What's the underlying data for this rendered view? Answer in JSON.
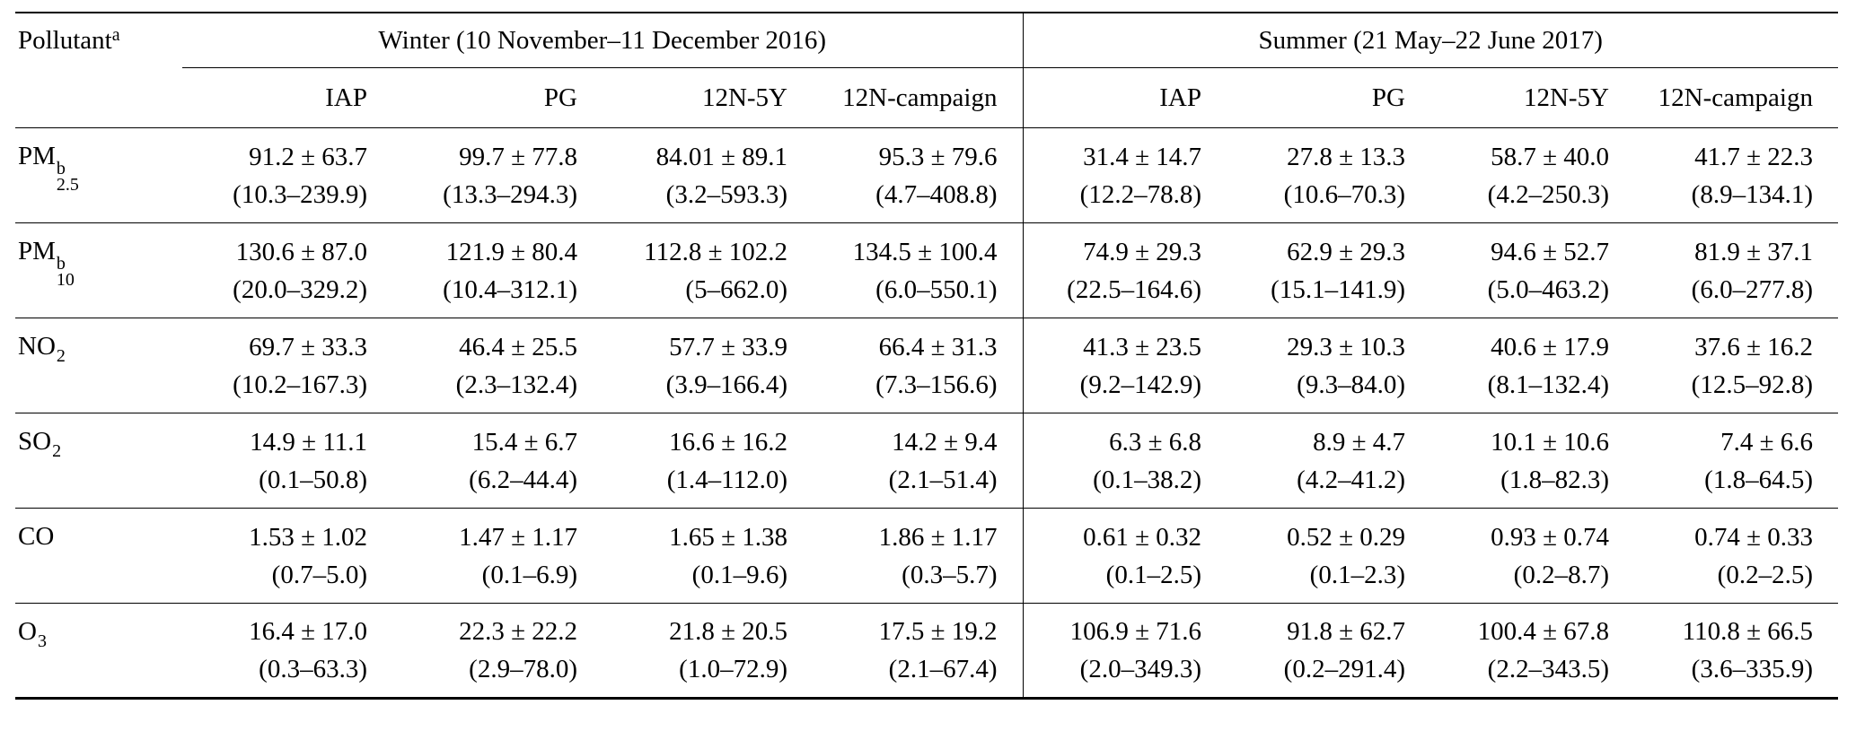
{
  "page": {
    "background": "#ffffff",
    "text_color": "#000000"
  },
  "table": {
    "header": {
      "pollutant_label": "Pollutant",
      "pollutant_note": "a",
      "winter_label": "Winter (10 November–11 December 2016)",
      "summer_label": "Summer (21 May–22 June 2017)",
      "sites": [
        "IAP",
        "PG",
        "12N-5Y",
        "12N-campaign"
      ]
    },
    "rows": [
      {
        "pollutant": {
          "base": "PM",
          "sup": "b",
          "sub": "2.5"
        },
        "winter": [
          {
            "mean": "91.2 ± 63.7",
            "range": "(10.3–239.9)"
          },
          {
            "mean": "99.7 ± 77.8",
            "range": "(13.3–294.3)"
          },
          {
            "mean": "84.01 ± 89.1",
            "range": "(3.2–593.3)"
          },
          {
            "mean": "95.3 ± 79.6",
            "range": "(4.7–408.8)"
          }
        ],
        "summer": [
          {
            "mean": "31.4 ± 14.7",
            "range": "(12.2–78.8)"
          },
          {
            "mean": "27.8 ± 13.3",
            "range": "(10.6–70.3)"
          },
          {
            "mean": "58.7 ± 40.0",
            "range": "(4.2–250.3)"
          },
          {
            "mean": "41.7 ± 22.3",
            "range": "(8.9–134.1)"
          }
        ]
      },
      {
        "pollutant": {
          "base": "PM",
          "sup": "b",
          "sub": "10"
        },
        "winter": [
          {
            "mean": "130.6 ± 87.0",
            "range": "(20.0–329.2)"
          },
          {
            "mean": "121.9 ± 80.4",
            "range": "(10.4–312.1)"
          },
          {
            "mean": "112.8 ± 102.2",
            "range": "(5–662.0)"
          },
          {
            "mean": "134.5 ± 100.4",
            "range": "(6.0–550.1)"
          }
        ],
        "summer": [
          {
            "mean": "74.9 ± 29.3",
            "range": "(22.5–164.6)"
          },
          {
            "mean": "62.9 ± 29.3",
            "range": "(15.1–141.9)"
          },
          {
            "mean": "94.6 ± 52.7",
            "range": "(5.0–463.2)"
          },
          {
            "mean": "81.9 ± 37.1",
            "range": "(6.0–277.8)"
          }
        ]
      },
      {
        "pollutant": {
          "base": "NO",
          "sup": "",
          "sub": "2"
        },
        "winter": [
          {
            "mean": "69.7 ± 33.3",
            "range": "(10.2–167.3)"
          },
          {
            "mean": "46.4 ± 25.5",
            "range": "(2.3–132.4)"
          },
          {
            "mean": "57.7 ± 33.9",
            "range": "(3.9–166.4)"
          },
          {
            "mean": "66.4 ± 31.3",
            "range": "(7.3–156.6)"
          }
        ],
        "summer": [
          {
            "mean": "41.3 ± 23.5",
            "range": "(9.2–142.9)"
          },
          {
            "mean": "29.3 ± 10.3",
            "range": "(9.3–84.0)"
          },
          {
            "mean": "40.6 ± 17.9",
            "range": "(8.1–132.4)"
          },
          {
            "mean": "37.6 ± 16.2",
            "range": "(12.5–92.8)"
          }
        ]
      },
      {
        "pollutant": {
          "base": "SO",
          "sup": "",
          "sub": "2"
        },
        "winter": [
          {
            "mean": "14.9 ± 11.1",
            "range": "(0.1–50.8)"
          },
          {
            "mean": "15.4 ± 6.7",
            "range": "(6.2–44.4)"
          },
          {
            "mean": "16.6 ± 16.2",
            "range": "(1.4–112.0)"
          },
          {
            "mean": "14.2 ± 9.4",
            "range": "(2.1–51.4)"
          }
        ],
        "summer": [
          {
            "mean": "6.3 ± 6.8",
            "range": "(0.1–38.2)"
          },
          {
            "mean": "8.9 ± 4.7",
            "range": "(4.2–41.2)"
          },
          {
            "mean": "10.1 ± 10.6",
            "range": "(1.8–82.3)"
          },
          {
            "mean": "7.4 ± 6.6",
            "range": "(1.8–64.5)"
          }
        ]
      },
      {
        "pollutant": {
          "base": "CO",
          "sup": "",
          "sub": ""
        },
        "winter": [
          {
            "mean": "1.53 ± 1.02",
            "range": "(0.7–5.0)"
          },
          {
            "mean": "1.47 ± 1.17",
            "range": "(0.1–6.9)"
          },
          {
            "mean": "1.65 ± 1.38",
            "range": "(0.1–9.6)"
          },
          {
            "mean": "1.86 ± 1.17",
            "range": "(0.3–5.7)"
          }
        ],
        "summer": [
          {
            "mean": "0.61 ± 0.32",
            "range": "(0.1–2.5)"
          },
          {
            "mean": "0.52 ± 0.29",
            "range": "(0.1–2.3)"
          },
          {
            "mean": "0.93 ± 0.74",
            "range": "(0.2–8.7)"
          },
          {
            "mean": "0.74 ± 0.33",
            "range": "(0.2–2.5)"
          }
        ]
      },
      {
        "pollutant": {
          "base": "O",
          "sup": "",
          "sub": "3"
        },
        "winter": [
          {
            "mean": "16.4 ± 17.0",
            "range": "(0.3–63.3)"
          },
          {
            "mean": "22.3 ± 22.2",
            "range": "(2.9–78.0)"
          },
          {
            "mean": "21.8 ± 20.5",
            "range": "(1.0–72.9)"
          },
          {
            "mean": "17.5 ± 19.2",
            "range": "(2.1–67.4)"
          }
        ],
        "summer": [
          {
            "mean": "106.9 ± 71.6",
            "range": "(2.0–349.3)"
          },
          {
            "mean": "91.8 ± 62.7",
            "range": "(0.2–291.4)"
          },
          {
            "mean": "100.4 ± 67.8",
            "range": "(2.2–343.5)"
          },
          {
            "mean": "110.8 ± 66.5",
            "range": "(3.6–335.9)"
          }
        ]
      }
    ]
  }
}
